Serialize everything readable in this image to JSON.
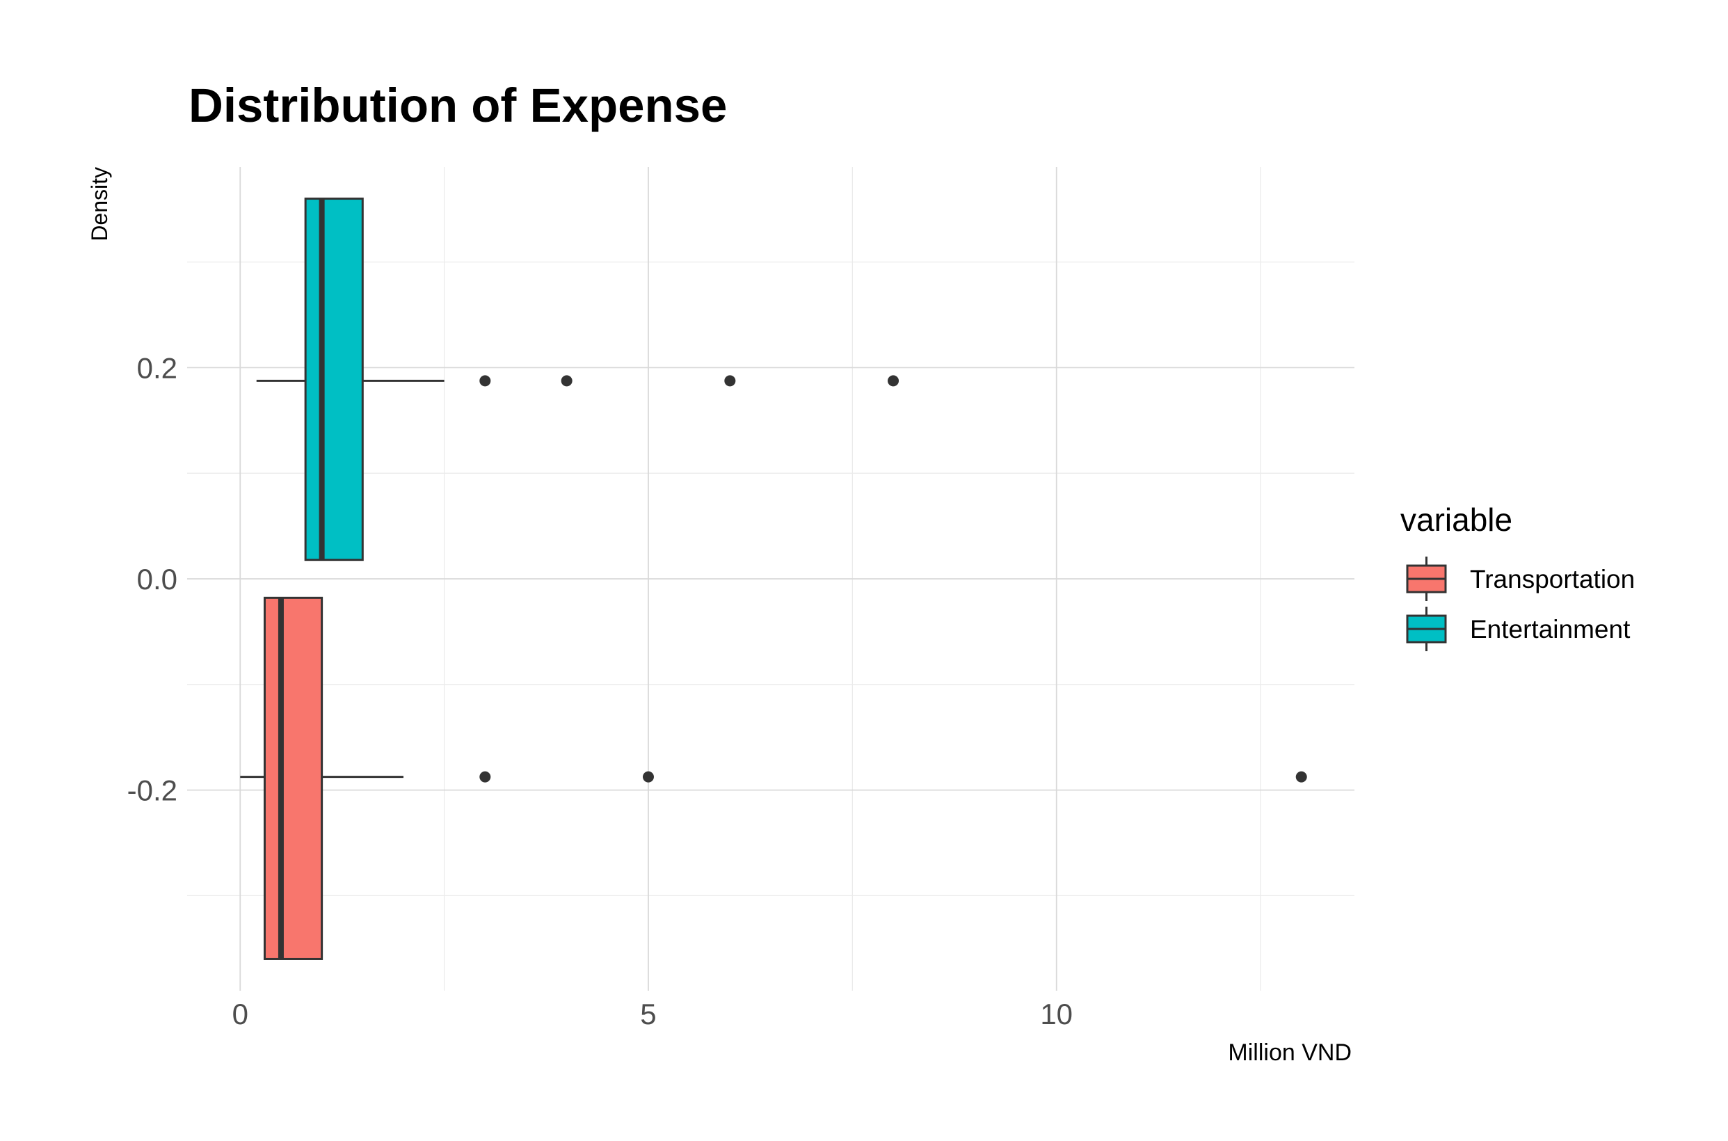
{
  "chart_data": {
    "type": "boxplot",
    "title": "Distribution of Expense",
    "xlabel": "Million VND",
    "ylabel": "Density",
    "orientation": "horizontal",
    "xlim": [
      -0.65,
      13.65
    ],
    "ylim": [
      -0.39,
      0.39
    ],
    "x_ticks": [
      0,
      5,
      10
    ],
    "x_tick_labels": [
      "0",
      "5",
      "10"
    ],
    "x_minor_ticks": [
      2.5,
      7.5,
      12.5
    ],
    "y_ticks": [
      0.2,
      0.0,
      -0.2
    ],
    "y_tick_labels": [
      "0.2",
      "0.0",
      "-0.2"
    ],
    "y_minor_ticks": [
      0.3,
      0.1,
      -0.1,
      -0.3
    ],
    "grid": true,
    "legend": {
      "title": "variable",
      "position": "right",
      "entries": [
        "Transportation",
        "Entertainment"
      ]
    },
    "series": [
      {
        "name": "Transportation",
        "color": "#F8766D",
        "y_range": [
          -0.36,
          -0.018
        ],
        "y_center": -0.1875,
        "whisker_low": 0.0,
        "q1": 0.3,
        "median": 0.5,
        "q3": 1.0,
        "whisker_high": 2.0,
        "outliers": [
          3,
          5,
          13
        ]
      },
      {
        "name": "Entertainment",
        "color": "#00BFC4",
        "y_range": [
          0.018,
          0.36
        ],
        "y_center": 0.1875,
        "whisker_low": 0.2,
        "q1": 0.8,
        "median": 1.0,
        "q3": 1.5,
        "whisker_high": 2.5,
        "outliers": [
          3,
          4,
          6,
          8
        ]
      }
    ]
  }
}
